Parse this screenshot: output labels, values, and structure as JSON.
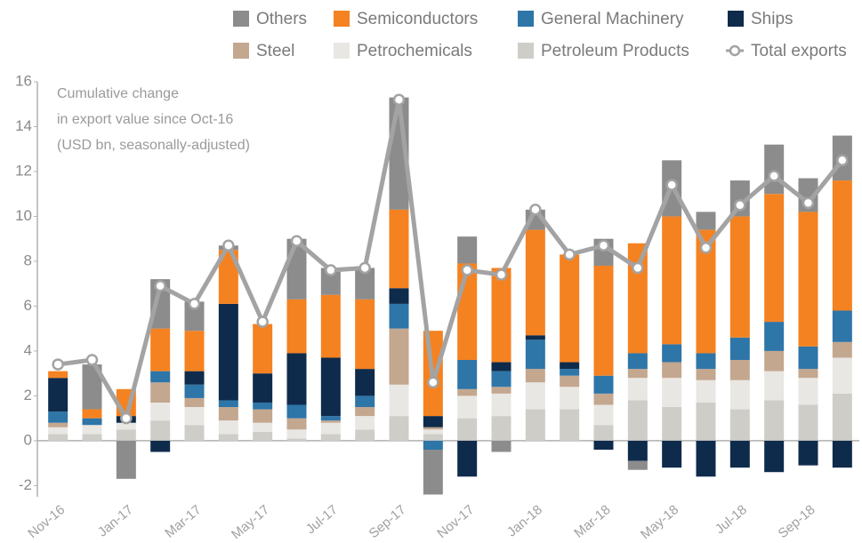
{
  "chart_data": {
    "type": "stacked_bar_line",
    "annotation": [
      "Cumulative change",
      "in export value since Oct-16",
      "(USD bn, seasonally-adjusted)"
    ],
    "categories": [
      "Nov-16",
      null,
      "Jan-17",
      null,
      "Mar-17",
      null,
      "May-17",
      null,
      "Jul-17",
      null,
      "Sep-17",
      null,
      "Nov-17",
      null,
      "Jan-18",
      null,
      "Mar-18",
      null,
      "May-18",
      null,
      "Jul-18",
      null,
      "Sep-18",
      null
    ],
    "series": [
      {
        "name": "Petroleum Products",
        "color": "#cfcdc8",
        "values": [
          0.3,
          0.3,
          0.5,
          0.9,
          0.7,
          0.3,
          0.4,
          0.1,
          0.3,
          0.5,
          1.1,
          0.3,
          1.0,
          1.1,
          1.4,
          1.4,
          0.7,
          1.8,
          1.5,
          1.7,
          1.4,
          1.8,
          1.6,
          2.1
        ]
      },
      {
        "name": "Petrochemicals",
        "color": "#e9e7e3",
        "values": [
          0.3,
          0.4,
          0.3,
          0.8,
          0.8,
          0.6,
          0.4,
          0.4,
          0.5,
          0.6,
          1.4,
          0.2,
          1.0,
          1.0,
          1.2,
          1.0,
          0.9,
          1.0,
          1.3,
          1.0,
          1.3,
          1.3,
          1.2,
          1.6
        ]
      },
      {
        "name": "Steel",
        "color": "#c4a78f",
        "values": [
          0.2,
          0,
          0,
          0.9,
          0.4,
          0.6,
          0.6,
          0.5,
          0.1,
          0.4,
          2.5,
          0.1,
          0.3,
          0.3,
          0.6,
          0.5,
          0.5,
          0.4,
          0.7,
          0.5,
          0.9,
          0.9,
          0.4,
          0.7
        ]
      },
      {
        "name": "General Machinery",
        "color": "#2e75a8",
        "values": [
          0.5,
          0.3,
          0,
          0.5,
          0.6,
          0.3,
          0.3,
          0.6,
          0.2,
          0.5,
          1.1,
          -0.4,
          1.3,
          0.7,
          1.3,
          0.3,
          0.8,
          0.7,
          0.8,
          0.7,
          1.0,
          1.3,
          1.0,
          1.4
        ]
      },
      {
        "name": "Ships",
        "color": "#0f2b4c",
        "values": [
          1.5,
          0,
          0.3,
          -0.5,
          0.6,
          4.3,
          1.3,
          2.3,
          2.6,
          1.2,
          0.7,
          0.5,
          -1.6,
          0.4,
          0.2,
          0.3,
          -0.4,
          -0.9,
          -1.2,
          -1.6,
          -1.2,
          -1.4,
          -1.1,
          -1.2
        ]
      },
      {
        "name": "Semiconductors",
        "color": "#f58220",
        "values": [
          0.3,
          0.4,
          1.2,
          1.9,
          1.8,
          2.4,
          2.2,
          2.4,
          2.8,
          3.1,
          3.5,
          3.8,
          4.3,
          4.2,
          4.7,
          4.8,
          4.9,
          4.9,
          5.7,
          5.5,
          5.4,
          5.7,
          6.0,
          5.8
        ]
      },
      {
        "name": "Others",
        "color": "#8c8c8c",
        "values": [
          0,
          2.0,
          -1.7,
          2.2,
          1.3,
          0.2,
          0,
          2.7,
          1.2,
          1.4,
          5.0,
          -2.0,
          1.2,
          -0.5,
          0.9,
          0,
          1.2,
          -0.4,
          2.5,
          0.8,
          1.6,
          2.2,
          1.5,
          2.0
        ]
      },
      {
        "name": "Total exports",
        "type": "line",
        "color": "#a3a3a3",
        "values": [
          3.4,
          3.6,
          1.0,
          6.9,
          6.1,
          8.7,
          5.3,
          8.9,
          7.6,
          7.7,
          15.2,
          2.6,
          7.6,
          7.4,
          10.3,
          8.3,
          8.7,
          7.7,
          11.4,
          8.6,
          10.5,
          11.8,
          10.6,
          12.5
        ]
      }
    ],
    "ylim": [
      -2.5,
      16
    ],
    "yticks": [
      -2,
      0,
      2,
      4,
      6,
      8,
      10,
      12,
      14,
      16
    ],
    "grid": false
  }
}
